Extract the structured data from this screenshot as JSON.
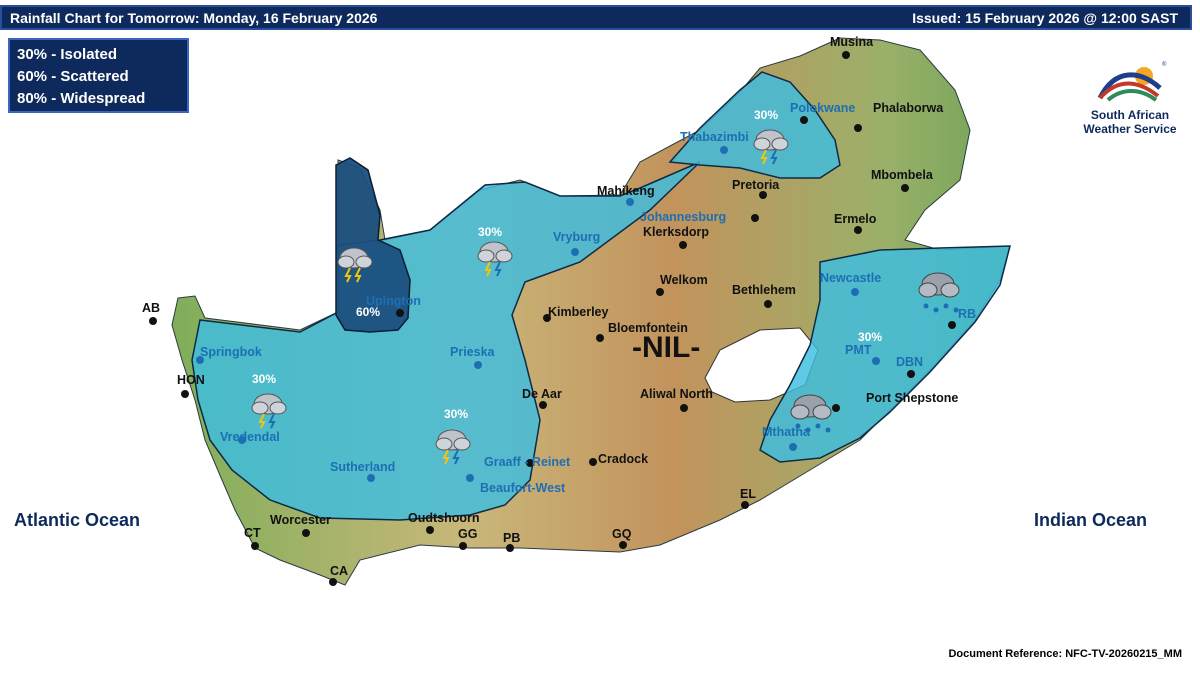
{
  "header": {
    "title": "Rainfall Chart for Tomorrow: Monday, 16 February 2026",
    "issued": "Issued: 15 February 2026 @ 12:00 SAST"
  },
  "legend": {
    "items": [
      "30% - Isolated",
      "60% - Scattered",
      "80% - Widespread"
    ]
  },
  "logo": {
    "line1": "South African",
    "line2": "Weather Service"
  },
  "oceans": {
    "atlantic": "Atlantic Ocean",
    "indian": "Indian Ocean"
  },
  "nil_label": "-NIL-",
  "zones": [
    {
      "label": "60%",
      "category": "Scattered",
      "color": "#1b4f7e"
    },
    {
      "label": "30%",
      "category": "Isolated",
      "color": "#3dbde0"
    }
  ],
  "rain_labels": [
    "30%",
    "30%",
    "30%",
    "30%",
    "60%",
    "30%"
  ],
  "cities": {
    "musina": "Musina",
    "polokwane": "Polokwane",
    "phalaborwa": "Phalaborwa",
    "thabazimbi": "Thabazimbi",
    "mbombela": "Mbombela",
    "pretoria": "Pretoria",
    "mahikeng": "Mahikeng",
    "johannesburg": "Johannesburg",
    "ermelo": "Ermelo",
    "vryburg": "Vryburg",
    "klerksdorp": "Klerksdorp",
    "welkom": "Welkom",
    "newcastle": "Newcastle",
    "bethlehem": "Bethlehem",
    "upington": "Upington",
    "kimberley": "Kimberley",
    "bloemfontein": "Bloemfontein",
    "rb": "RB",
    "ab": "AB",
    "springbok": "Springbok",
    "prieska": "Prieska",
    "pmt": "PMT",
    "dbn": "DBN",
    "hon": "HON",
    "de_aar": "De Aar",
    "aliwal_north": "Aliwal North",
    "port_shepstone": "Port Shepstone",
    "vredendal": "Vredendal",
    "mthatha": "Mthatha",
    "sutherland": "Sutherland",
    "graaff_reinet": "Graaff - Reinet",
    "cradock": "Cradock",
    "beaufort_west": "Beaufort-West",
    "el": "EL",
    "worcester": "Worcester",
    "oudtshoorn": "Oudtshoorn",
    "ct": "CT",
    "gg": "GG",
    "pb": "PB",
    "gq": "GQ",
    "ca": "CA"
  },
  "doc_reference": "Document Reference: NFC-TV-20260215_MM"
}
